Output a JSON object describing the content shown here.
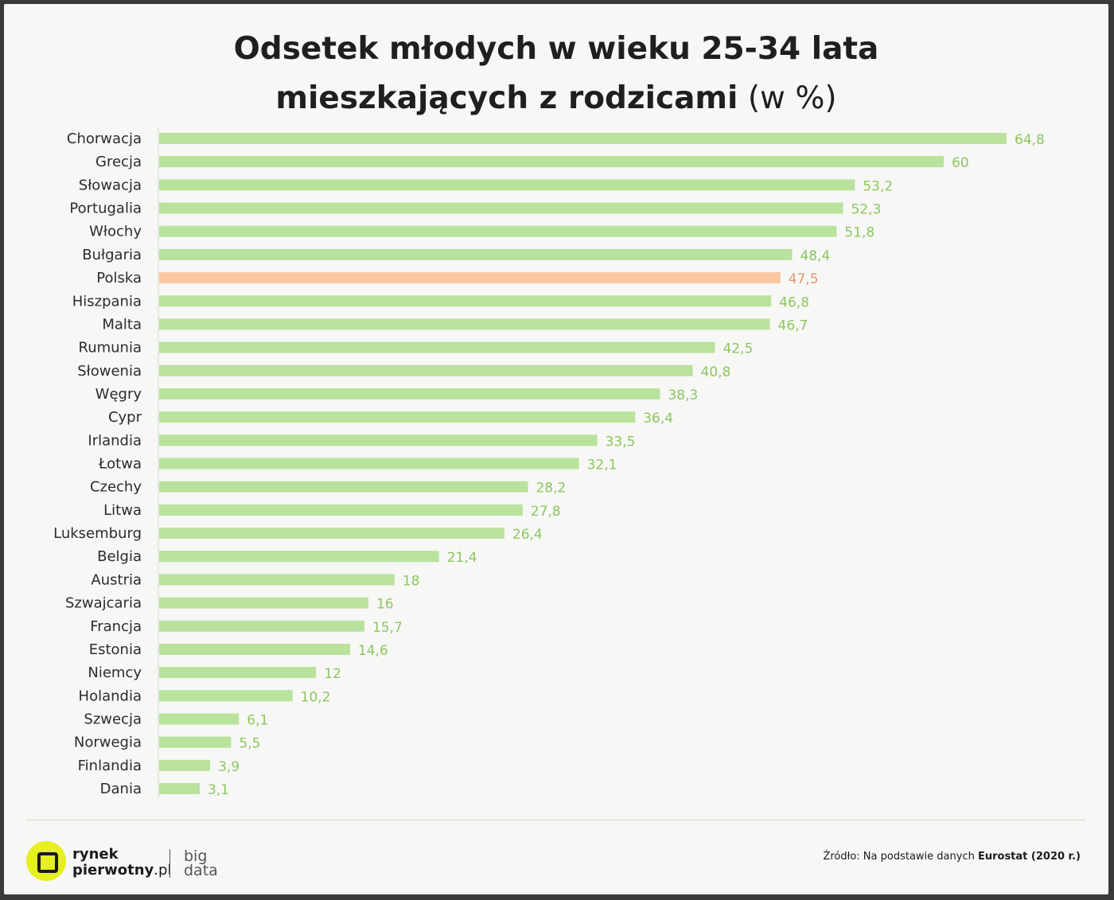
{
  "title": {
    "line1": "Odsetek młodych w wieku 25-34 lata",
    "line2_bold": "mieszkających z rodzicami",
    "line2_light": " (w %)"
  },
  "colors": {
    "bar": "#b9e29d",
    "highlight_bar": "#fbc6a1",
    "value_label": "#8cc760",
    "highlight_label": "#e0977a"
  },
  "chart_data": {
    "type": "bar",
    "orientation": "horizontal",
    "categories": [
      "Chorwacja",
      "Grecja",
      "Słowacja",
      "Portugalia",
      "Włochy",
      "Bułgaria",
      "Polska",
      "Hiszpania",
      "Malta",
      "Rumunia",
      "Słowenia",
      "Węgry",
      "Cypr",
      "Irlandia",
      "Łotwa",
      "Czechy",
      "Litwa",
      "Luksemburg",
      "Belgia",
      "Austria",
      "Szwajcaria",
      "Francja",
      "Estonia",
      "Niemcy",
      "Holandia",
      "Szwecja",
      "Norwegia",
      "Finlandia",
      "Dania"
    ],
    "values": [
      64.8,
      60,
      53.2,
      52.3,
      51.8,
      48.4,
      47.5,
      46.8,
      46.7,
      42.5,
      40.8,
      38.3,
      36.4,
      33.5,
      32.1,
      28.2,
      27.8,
      26.4,
      21.4,
      18,
      16,
      15.7,
      14.6,
      12,
      10.2,
      6.1,
      5.5,
      3.9,
      3.1
    ],
    "value_labels": [
      "64,8",
      "60",
      "53,2",
      "52,3",
      "51,8",
      "48,4",
      "47,5",
      "46,8",
      "46,7",
      "42,5",
      "40,8",
      "38,3",
      "36,4",
      "33,5",
      "32,1",
      "28,2",
      "27,8",
      "26,4",
      "21,4",
      "18",
      "16",
      "15,7",
      "14,6",
      "12",
      "10,2",
      "6,1",
      "5,5",
      "3,9",
      "3,1"
    ],
    "highlight_category": "Polska",
    "xlim": [
      0,
      64.8
    ],
    "grid": false,
    "legend": "none"
  },
  "logo": {
    "brand_line1": "rynek",
    "brand_line2_bold": "pierwotny",
    "brand_line2_light": ".pl",
    "sub_line1": "big",
    "sub_line2": "data"
  },
  "source": {
    "prefix": "Źródło: Na podstawie danych ",
    "bold": "Eurostat (2020 r.)"
  }
}
